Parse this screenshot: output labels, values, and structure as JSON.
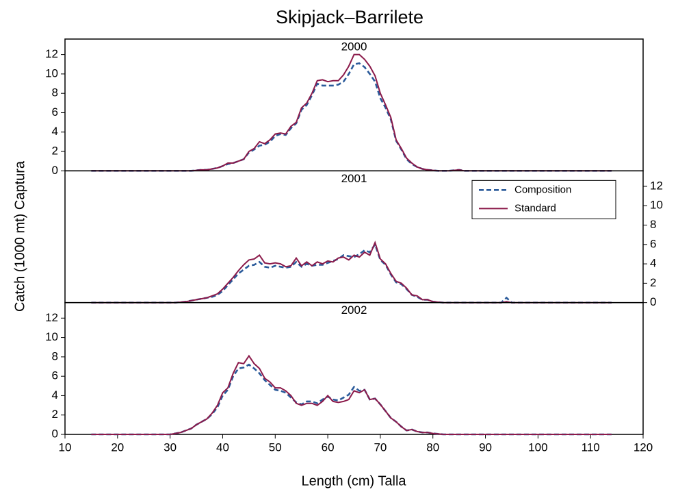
{
  "chart_data": {
    "type": "line",
    "title": "Skipjack–Barrilete",
    "xlabel": "Length (cm) Talla",
    "ylabel": "Catch (1000 mt) Captura",
    "xlim": [
      10,
      120
    ],
    "xticks": [
      10,
      20,
      30,
      40,
      50,
      60,
      70,
      80,
      90,
      100,
      110,
      120
    ],
    "x": [
      15,
      16,
      17,
      18,
      19,
      20,
      21,
      22,
      23,
      24,
      25,
      26,
      27,
      28,
      29,
      30,
      31,
      32,
      33,
      34,
      35,
      36,
      37,
      38,
      39,
      40,
      41,
      42,
      43,
      44,
      45,
      46,
      47,
      48,
      49,
      50,
      51,
      52,
      53,
      54,
      55,
      56,
      57,
      58,
      59,
      60,
      61,
      62,
      63,
      64,
      65,
      66,
      67,
      68,
      69,
      70,
      71,
      72,
      73,
      74,
      75,
      76,
      77,
      78,
      79,
      80,
      81,
      82,
      83,
      84,
      85,
      86,
      87,
      88,
      89,
      90,
      91,
      92,
      93,
      94,
      95,
      96,
      97,
      98,
      99,
      100,
      101,
      102,
      103,
      104,
      105,
      106,
      107,
      108,
      109,
      110,
      111,
      112,
      113,
      114
    ],
    "panels": [
      {
        "label": "2000",
        "axis_side": "left",
        "ylim": [
          0,
          13.6
        ],
        "yticks": [
          0,
          2,
          4,
          6,
          8,
          10,
          12
        ],
        "series": [
          {
            "name": "Composition",
            "color": "#2a5a9a",
            "dashed": true,
            "values": [
              0,
              0,
              0,
              0,
              0,
              0,
              0,
              0,
              0,
              0,
              0,
              0,
              0,
              0,
              0,
              0,
              0,
              0,
              0,
              0,
              0.05,
              0.1,
              0.1,
              0.2,
              0.3,
              0.5,
              0.7,
              0.8,
              1.0,
              1.2,
              1.9,
              2.2,
              2.6,
              2.7,
              3.0,
              3.6,
              3.8,
              3.7,
              4.4,
              4.9,
              6.3,
              6.8,
              7.8,
              9.0,
              8.8,
              8.8,
              8.8,
              8.9,
              9.2,
              10.0,
              11.0,
              11.1,
              10.7,
              10.0,
              9.2,
              7.5,
              6.5,
              5.3,
              3.1,
              2.2,
              1.2,
              0.7,
              0.4,
              0.2,
              0.1,
              0.05,
              0,
              0,
              0,
              0.05,
              0.1,
              0,
              0,
              0,
              0,
              0,
              0,
              0,
              0,
              0,
              0,
              0,
              0,
              0,
              0,
              0,
              0,
              0,
              0,
              0,
              0,
              0,
              0,
              0,
              0,
              0,
              0,
              0,
              0,
              0
            ]
          },
          {
            "name": "Standard",
            "color": "#8b1a4a",
            "dashed": false,
            "values": [
              0,
              0,
              0,
              0,
              0,
              0,
              0,
              0,
              0,
              0,
              0,
              0,
              0,
              0,
              0,
              0,
              0,
              0,
              0,
              0,
              0.05,
              0.1,
              0.1,
              0.2,
              0.3,
              0.5,
              0.8,
              0.8,
              1.0,
              1.2,
              2.0,
              2.3,
              3.0,
              2.8,
              3.2,
              3.8,
              3.9,
              3.8,
              4.6,
              5.0,
              6.5,
              7.0,
              8.0,
              9.3,
              9.4,
              9.2,
              9.3,
              9.3,
              9.9,
              10.8,
              12.0,
              12.0,
              11.5,
              10.8,
              9.8,
              8.0,
              6.8,
              5.5,
              3.2,
              2.3,
              1.3,
              0.8,
              0.4,
              0.2,
              0.1,
              0.05,
              0,
              0,
              0,
              0.05,
              0.1,
              0,
              0,
              0,
              0,
              0,
              0,
              0,
              0,
              0,
              0,
              0,
              0,
              0,
              0,
              0,
              0,
              0,
              0,
              0,
              0,
              0,
              0,
              0,
              0,
              0,
              0,
              0,
              0,
              0
            ]
          }
        ]
      },
      {
        "label": "2001",
        "axis_side": "right",
        "legend": "upper right",
        "ylim": [
          0,
          13.6
        ],
        "yticks": [
          0,
          2,
          4,
          6,
          8,
          10,
          12
        ],
        "series": [
          {
            "name": "Composition",
            "color": "#2a5a9a",
            "dashed": true,
            "values": [
              0,
              0,
              0,
              0,
              0,
              0,
              0,
              0,
              0,
              0,
              0,
              0,
              0,
              0,
              0,
              0,
              0,
              0.05,
              0.1,
              0.2,
              0.3,
              0.4,
              0.5,
              0.6,
              0.8,
              1.2,
              1.8,
              2.4,
              3.0,
              3.4,
              3.8,
              3.9,
              4.2,
              3.7,
              3.6,
              3.8,
              3.7,
              3.6,
              3.7,
              4.2,
              3.7,
              4.0,
              3.8,
              3.9,
              3.9,
              4.1,
              4.3,
              4.5,
              4.9,
              4.8,
              4.7,
              5.0,
              5.4,
              5.2,
              6.0,
              4.4,
              3.9,
              2.9,
              2.1,
              1.9,
              1.4,
              0.8,
              0.6,
              0.3,
              0.3,
              0.1,
              0.05,
              0,
              0,
              0,
              0,
              0,
              0,
              0,
              0,
              0,
              0,
              0,
              0,
              0.5,
              0,
              0,
              0,
              0,
              0,
              0,
              0,
              0,
              0,
              0,
              0,
              0,
              0,
              0,
              0,
              0,
              0,
              0,
              0,
              0
            ]
          },
          {
            "name": "Standard",
            "color": "#8b1a4a",
            "dashed": false,
            "values": [
              0,
              0,
              0,
              0,
              0,
              0,
              0,
              0,
              0,
              0,
              0,
              0,
              0,
              0,
              0,
              0,
              0,
              0.05,
              0.1,
              0.2,
              0.3,
              0.4,
              0.5,
              0.7,
              0.9,
              1.4,
              2.0,
              2.6,
              3.3,
              3.9,
              4.4,
              4.5,
              4.9,
              4.1,
              4.0,
              4.1,
              4.0,
              3.7,
              3.8,
              4.6,
              3.8,
              4.2,
              3.8,
              4.2,
              4.0,
              4.3,
              4.2,
              4.6,
              4.7,
              4.4,
              4.9,
              4.7,
              5.2,
              4.9,
              6.2,
              4.5,
              4.0,
              3.0,
              2.2,
              2.0,
              1.5,
              0.8,
              0.7,
              0.3,
              0.3,
              0.1,
              0.05,
              0,
              0,
              0,
              0,
              0,
              0,
              0,
              0,
              0,
              0,
              0,
              0,
              0.1,
              0,
              0,
              0,
              0,
              0,
              0,
              0,
              0,
              0,
              0,
              0,
              0,
              0,
              0,
              0,
              0,
              0,
              0,
              0,
              0
            ]
          }
        ]
      },
      {
        "label": "2002",
        "axis_side": "left",
        "ylim": [
          0,
          13.6
        ],
        "yticks": [
          0,
          2,
          4,
          6,
          8,
          10,
          12
        ],
        "series": [
          {
            "name": "Composition",
            "color": "#2a5a9a",
            "dashed": true,
            "values": [
              0,
              0,
              0,
              0,
              0,
              0,
              0,
              0,
              0,
              0,
              0,
              0,
              0,
              0,
              0,
              0,
              0.1,
              0.2,
              0.4,
              0.6,
              1.0,
              1.3,
              1.6,
              2.1,
              2.8,
              4.0,
              4.6,
              6.0,
              6.8,
              6.9,
              7.2,
              6.8,
              6.3,
              5.6,
              5.1,
              4.6,
              4.5,
              4.3,
              3.8,
              3.3,
              3.1,
              3.4,
              3.4,
              3.2,
              3.6,
              3.9,
              3.6,
              3.5,
              3.8,
              4.1,
              4.9,
              4.5,
              4.6,
              3.6,
              3.7,
              3.1,
              2.4,
              1.7,
              1.3,
              0.8,
              0.4,
              0.5,
              0.3,
              0.2,
              0.2,
              0.1,
              0.05,
              0,
              0,
              0,
              0,
              0,
              0,
              0,
              0,
              0,
              0,
              0,
              0,
              0,
              0,
              0,
              0,
              0,
              0,
              0,
              0,
              0,
              0,
              0,
              0,
              0,
              0,
              0,
              0,
              0,
              0,
              0,
              0,
              0
            ]
          },
          {
            "name": "Standard",
            "color": "#8b1a4a",
            "dashed": false,
            "values": [
              0,
              0,
              0,
              0,
              0,
              0,
              0,
              0,
              0,
              0,
              0,
              0,
              0,
              0,
              0,
              0,
              0.1,
              0.2,
              0.4,
              0.6,
              1.0,
              1.3,
              1.6,
              2.2,
              3.0,
              4.3,
              4.8,
              6.3,
              7.4,
              7.3,
              8.1,
              7.3,
              6.8,
              5.8,
              5.4,
              4.8,
              4.8,
              4.5,
              4.0,
              3.2,
              3.0,
              3.2,
              3.2,
              3.0,
              3.4,
              4.0,
              3.4,
              3.3,
              3.4,
              3.6,
              4.5,
              4.3,
              4.6,
              3.6,
              3.7,
              3.1,
              2.4,
              1.7,
              1.3,
              0.8,
              0.4,
              0.5,
              0.3,
              0.2,
              0.2,
              0.1,
              0.05,
              0,
              0,
              0,
              0,
              0,
              0,
              0,
              0,
              0,
              0,
              0,
              0,
              0,
              0,
              0,
              0,
              0,
              0,
              0,
              0,
              0,
              0,
              0,
              0,
              0,
              0,
              0,
              0,
              0,
              0,
              0,
              0,
              0
            ]
          }
        ]
      }
    ]
  }
}
